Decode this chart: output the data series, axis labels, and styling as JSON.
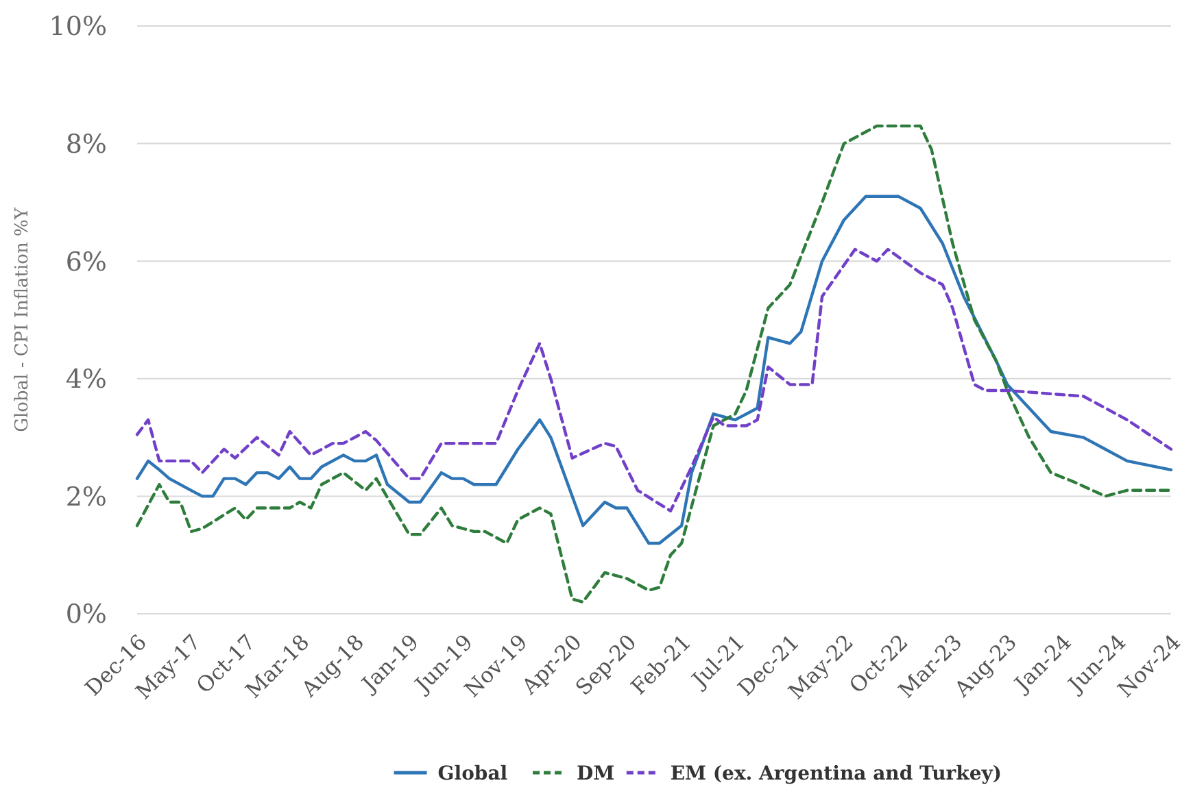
{
  "chart_data": {
    "type": "line",
    "ylabel": "Global - CPI Inflation %Y",
    "xlim": [
      "2016-12",
      "2024-11"
    ],
    "xticks": [
      {
        "value": "2016-12",
        "label": "Dec-16"
      },
      {
        "value": "2017-05",
        "label": "May-17"
      },
      {
        "value": "2017-10",
        "label": "Oct-17"
      },
      {
        "value": "2018-03",
        "label": "Mar-18"
      },
      {
        "value": "2018-08",
        "label": "Aug-18"
      },
      {
        "value": "2019-01",
        "label": "Jan-19"
      },
      {
        "value": "2019-06",
        "label": "Jun-19"
      },
      {
        "value": "2019-11",
        "label": "Nov-19"
      },
      {
        "value": "2020-04",
        "label": "Apr-20"
      },
      {
        "value": "2020-09",
        "label": "Sep-20"
      },
      {
        "value": "2021-02",
        "label": "Feb-21"
      },
      {
        "value": "2021-07",
        "label": "Jul-21"
      },
      {
        "value": "2021-12",
        "label": "Dec-21"
      },
      {
        "value": "2022-05",
        "label": "May-22"
      },
      {
        "value": "2022-10",
        "label": "Oct-22"
      },
      {
        "value": "2023-03",
        "label": "Mar-23"
      },
      {
        "value": "2023-08",
        "label": "Aug-23"
      },
      {
        "value": "2024-01",
        "label": "Jan-24"
      },
      {
        "value": "2024-06",
        "label": "Jun-24"
      },
      {
        "value": "2024-11",
        "label": "Nov-24"
      }
    ],
    "ylim": [
      0,
      10
    ],
    "yticks": [
      {
        "value": 0,
        "label": "0%"
      },
      {
        "value": 2,
        "label": "2%"
      },
      {
        "value": 4,
        "label": "4%"
      },
      {
        "value": 6,
        "label": "6%"
      },
      {
        "value": 8,
        "label": "8%"
      },
      {
        "value": 10,
        "label": "10%"
      }
    ],
    "grid": "y",
    "legend": "bottom",
    "marker": "none",
    "series": [
      {
        "name": "Global",
        "color": "#2e75b6",
        "line_style": "solid",
        "x": [
          "2016-12",
          "2017-01",
          "2017-02",
          "2017-03",
          "2017-05",
          "2017-06",
          "2017-07",
          "2017-08",
          "2017-09",
          "2017-10",
          "2017-11",
          "2017-12",
          "2018-01",
          "2018-02",
          "2018-03",
          "2018-04",
          "2018-05",
          "2018-07",
          "2018-08",
          "2018-09",
          "2018-10",
          "2018-11",
          "2019-01",
          "2019-02",
          "2019-04",
          "2019-05",
          "2019-06",
          "2019-07",
          "2019-09",
          "2019-11",
          "2020-01",
          "2020-02",
          "2020-05",
          "2020-07",
          "2020-08",
          "2020-09",
          "2020-11",
          "2020-12",
          "2021-02",
          "2021-03",
          "2021-05",
          "2021-07",
          "2021-09",
          "2021-10",
          "2021-12",
          "2022-01",
          "2022-03",
          "2022-05",
          "2022-07",
          "2022-10",
          "2022-12",
          "2023-02",
          "2023-04",
          "2023-07",
          "2023-08",
          "2023-10",
          "2023-12",
          "2024-03",
          "2024-05",
          "2024-07",
          "2024-11"
        ],
        "values": [
          2.3,
          2.6,
          2.45,
          2.3,
          2.1,
          2.0,
          2.0,
          2.3,
          2.3,
          2.2,
          2.4,
          2.4,
          2.3,
          2.5,
          2.3,
          2.3,
          2.5,
          2.7,
          2.6,
          2.6,
          2.7,
          2.2,
          1.9,
          1.9,
          2.4,
          2.3,
          2.3,
          2.2,
          2.2,
          2.8,
          3.3,
          3.0,
          1.5,
          1.9,
          1.8,
          1.8,
          1.2,
          1.2,
          1.5,
          2.4,
          3.4,
          3.3,
          3.5,
          4.7,
          4.6,
          4.8,
          6.0,
          6.7,
          7.1,
          7.1,
          6.9,
          6.3,
          5.4,
          4.3,
          3.9,
          3.5,
          3.1,
          3.0,
          2.8,
          2.6,
          2.45
        ]
      },
      {
        "name": "DM",
        "color": "#2f7d3c",
        "line_style": "dashed",
        "x": [
          "2016-12",
          "2017-02",
          "2017-03",
          "2017-04",
          "2017-05",
          "2017-06",
          "2017-09",
          "2017-10",
          "2017-11",
          "2018-02",
          "2018-03",
          "2018-04",
          "2018-05",
          "2018-07",
          "2018-09",
          "2018-10",
          "2019-01",
          "2019-02",
          "2019-04",
          "2019-05",
          "2019-07",
          "2019-08",
          "2019-10",
          "2019-11",
          "2020-01",
          "2020-02",
          "2020-03",
          "2020-04",
          "2020-05",
          "2020-07",
          "2020-08",
          "2020-09",
          "2020-11",
          "2020-12",
          "2021-01",
          "2021-02",
          "2021-05",
          "2021-07",
          "2021-08",
          "2021-10",
          "2021-12",
          "2022-03",
          "2022-05",
          "2022-08",
          "2022-12",
          "2023-01",
          "2023-03",
          "2023-05",
          "2023-07",
          "2023-08",
          "2023-10",
          "2023-12",
          "2024-02",
          "2024-05",
          "2024-07",
          "2024-11"
        ],
        "values": [
          1.5,
          2.2,
          1.9,
          1.9,
          1.4,
          1.45,
          1.8,
          1.6,
          1.8,
          1.8,
          1.9,
          1.8,
          2.2,
          2.4,
          2.1,
          2.3,
          1.35,
          1.35,
          1.8,
          1.5,
          1.4,
          1.4,
          1.2,
          1.6,
          1.8,
          1.7,
          1.0,
          0.25,
          0.2,
          0.7,
          0.65,
          0.6,
          0.4,
          0.45,
          1.0,
          1.2,
          3.2,
          3.4,
          3.8,
          5.2,
          5.6,
          7.0,
          8.0,
          8.3,
          8.3,
          7.9,
          6.3,
          5.0,
          4.3,
          3.8,
          3.0,
          2.4,
          2.25,
          2.0,
          2.1,
          2.1
        ]
      },
      {
        "name": "EM (ex. Argentina and Turkey)",
        "color": "#7040c8",
        "line_style": "dashed",
        "x": [
          "2016-12",
          "2017-01",
          "2017-02",
          "2017-04",
          "2017-05",
          "2017-06",
          "2017-08",
          "2017-09",
          "2017-11",
          "2018-01",
          "2018-02",
          "2018-04",
          "2018-06",
          "2018-07",
          "2018-09",
          "2018-10",
          "2019-01",
          "2019-02",
          "2019-04",
          "2019-06",
          "2019-09",
          "2019-11",
          "2020-01",
          "2020-02",
          "2020-04",
          "2020-07",
          "2020-08",
          "2020-10",
          "2021-01",
          "2021-03",
          "2021-05",
          "2021-06",
          "2021-08",
          "2021-09",
          "2021-10",
          "2021-12",
          "2022-02",
          "2022-03",
          "2022-06",
          "2022-08",
          "2022-09",
          "2022-12",
          "2023-02",
          "2023-03",
          "2023-05",
          "2023-06",
          "2023-08",
          "2024-03",
          "2024-07",
          "2024-11"
        ],
        "values": [
          3.05,
          3.3,
          2.6,
          2.6,
          2.6,
          2.4,
          2.8,
          2.65,
          3.0,
          2.7,
          3.1,
          2.7,
          2.9,
          2.9,
          3.1,
          2.95,
          2.3,
          2.3,
          2.9,
          2.9,
          2.9,
          3.8,
          4.6,
          4.0,
          2.65,
          2.9,
          2.85,
          2.1,
          1.75,
          2.5,
          3.35,
          3.2,
          3.2,
          3.3,
          4.2,
          3.9,
          3.9,
          5.4,
          6.2,
          6.0,
          6.2,
          5.8,
          5.6,
          5.2,
          3.9,
          3.8,
          3.8,
          3.7,
          3.3,
          2.8
        ]
      }
    ]
  }
}
